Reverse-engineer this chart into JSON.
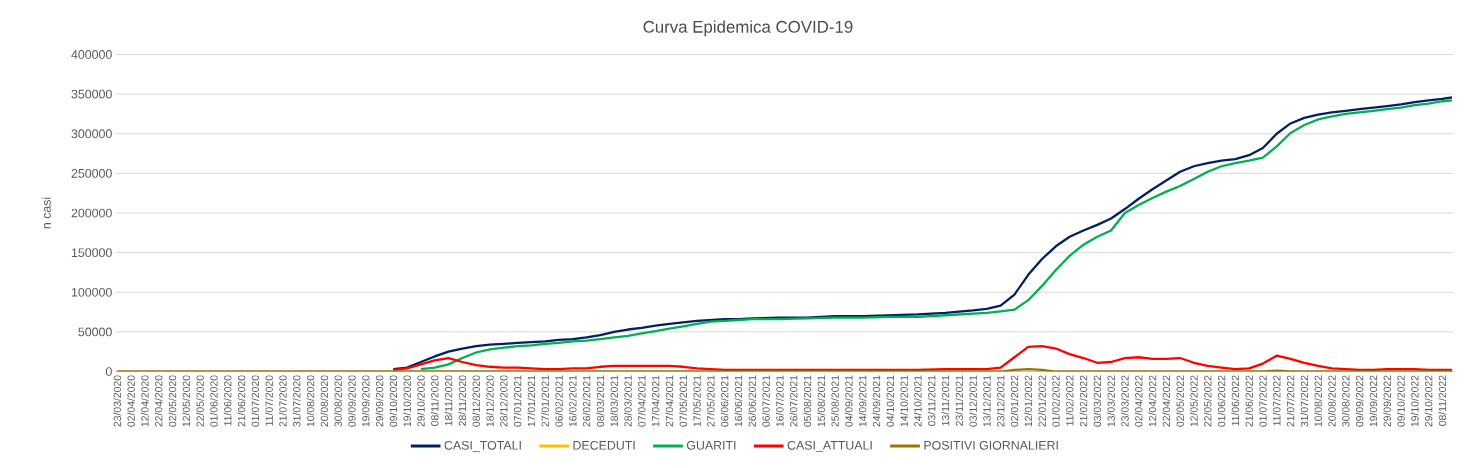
{
  "chart_data": {
    "type": "line",
    "title": "Curva Epidemica COVID-19",
    "ylabel": "n casi",
    "x": [
      "2020-03-23",
      "2020-05-12",
      "2020-07-01",
      "2020-08-20",
      "2020-09-19",
      "2020-10-09",
      "2020-10-19",
      "2020-10-29",
      "2020-11-08",
      "2020-11-18",
      "2020-11-28",
      "2020-12-08",
      "2020-12-18",
      "2020-12-28",
      "2021-01-07",
      "2021-01-17",
      "2021-01-27",
      "2021-02-06",
      "2021-02-16",
      "2021-02-26",
      "2021-03-08",
      "2021-03-18",
      "2021-03-28",
      "2021-04-07",
      "2021-04-17",
      "2021-04-27",
      "2021-05-07",
      "2021-05-17",
      "2021-05-27",
      "2021-06-06",
      "2021-06-16",
      "2021-06-26",
      "2021-07-16",
      "2021-08-05",
      "2021-08-25",
      "2021-09-14",
      "2021-10-04",
      "2021-10-24",
      "2021-11-13",
      "2021-12-03",
      "2021-12-13",
      "2021-12-23",
      "2022-01-02",
      "2022-01-12",
      "2022-01-22",
      "2022-02-01",
      "2022-02-11",
      "2022-02-21",
      "2022-03-03",
      "2022-03-13",
      "2022-03-23",
      "2022-04-02",
      "2022-04-12",
      "2022-04-22",
      "2022-05-02",
      "2022-05-12",
      "2022-05-22",
      "2022-06-01",
      "2022-06-11",
      "2022-06-21",
      "2022-07-01",
      "2022-07-11",
      "2022-07-21",
      "2022-07-31",
      "2022-08-10",
      "2022-08-20",
      "2022-08-30",
      "2022-09-09",
      "2022-09-19",
      "2022-09-29",
      "2022-10-09",
      "2022-10-19",
      "2022-10-29",
      "2022-11-08",
      "2022-11-15"
    ],
    "series": [
      {
        "name": "CASI_TOTALI",
        "color": "#002060",
        "values": [
          null,
          null,
          null,
          null,
          null,
          3000,
          5000,
          12000,
          19000,
          25000,
          29000,
          32000,
          34000,
          35000,
          36000,
          37000,
          38000,
          40000,
          41000,
          43000,
          46000,
          50000,
          53000,
          55000,
          58000,
          60000,
          62000,
          64000,
          65000,
          66000,
          66000,
          67000,
          68000,
          68000,
          70000,
          70000,
          71000,
          72000,
          74000,
          77000,
          79000,
          83000,
          97000,
          122000,
          142000,
          158000,
          170000,
          178000,
          185000,
          193000,
          205000,
          218000,
          230000,
          241000,
          252000,
          259000,
          263000,
          266000,
          268000,
          273000,
          282000,
          300000,
          313000,
          320000,
          324000,
          327000,
          329000,
          331000,
          333000,
          335000,
          337000,
          340000,
          342000,
          344000,
          346000
        ]
      },
      {
        "name": "DECEDUTI",
        "color": "#ffc000",
        "values": [
          null,
          null,
          null,
          null,
          null,
          null,
          null,
          null,
          null,
          null,
          null,
          null,
          null,
          null,
          null,
          null,
          null,
          null,
          null,
          null,
          null,
          null,
          null,
          null,
          null,
          null,
          null,
          null,
          null,
          null,
          null,
          null,
          null,
          null,
          null,
          null,
          null,
          null,
          null,
          null,
          null,
          null,
          null,
          null,
          null,
          null,
          null,
          null,
          null,
          null,
          null,
          null,
          null,
          null,
          null,
          null,
          null,
          null,
          null,
          null,
          null,
          null,
          null,
          null,
          null,
          null,
          null,
          null,
          null,
          null,
          null,
          null,
          null,
          null,
          null
        ]
      },
      {
        "name": "GUARITI",
        "color": "#00b050",
        "values": [
          null,
          null,
          null,
          null,
          null,
          null,
          null,
          3000,
          5000,
          9000,
          17000,
          24000,
          28000,
          30000,
          32000,
          33000,
          35000,
          36000,
          38000,
          39000,
          41000,
          43000,
          45000,
          48000,
          51000,
          54000,
          57000,
          60000,
          63000,
          64000,
          65000,
          66000,
          66000,
          67000,
          68000,
          68000,
          69000,
          69000,
          71000,
          73000,
          74000,
          76000,
          78000,
          90000,
          108000,
          128000,
          146000,
          160000,
          170000,
          178000,
          200000,
          210000,
          219000,
          227000,
          234000,
          243000,
          252000,
          259000,
          263000,
          266000,
          270000,
          284000,
          301000,
          311000,
          318000,
          322000,
          325000,
          327000,
          329000,
          331000,
          333000,
          336000,
          338000,
          341000,
          342000
        ]
      },
      {
        "name": "CASI_ATTUALI",
        "color": "#ff0000",
        "values": [
          null,
          null,
          null,
          null,
          null,
          2000,
          4000,
          9000,
          14000,
          17000,
          12000,
          8000,
          6000,
          5000,
          5000,
          4000,
          3000,
          3000,
          4000,
          4000,
          6000,
          7000,
          7000,
          7000,
          7000,
          7000,
          6000,
          4000,
          3000,
          2000,
          2000,
          2000,
          2000,
          2000,
          2000,
          2000,
          2000,
          2000,
          3000,
          3000,
          3000,
          5000,
          18000,
          31000,
          32000,
          29000,
          22000,
          17000,
          11000,
          12000,
          17000,
          18000,
          16000,
          16000,
          17000,
          11000,
          7000,
          5000,
          3000,
          4000,
          10000,
          20000,
          16000,
          11000,
          7000,
          4000,
          3000,
          2000,
          2000,
          3000,
          3000,
          3000,
          2000,
          2000,
          2000
        ]
      },
      {
        "name": "POSITIVI GIORNALIERI",
        "color": "#997300",
        "values": [
          0,
          0,
          0,
          0,
          0,
          0,
          0,
          0,
          0,
          0,
          0,
          0,
          0,
          0,
          0,
          0,
          0,
          0,
          0,
          0,
          0,
          0,
          0,
          0,
          0,
          0,
          0,
          0,
          0,
          0,
          0,
          0,
          0,
          0,
          0,
          0,
          0,
          0,
          0,
          0,
          0,
          0,
          2000,
          3000,
          2000,
          0,
          0,
          0,
          0,
          0,
          0,
          0,
          0,
          0,
          0,
          0,
          0,
          0,
          0,
          0,
          0,
          1000,
          0,
          0,
          0,
          0,
          0,
          0,
          0,
          0,
          0,
          0,
          0,
          0,
          0
        ]
      }
    ],
    "xlim": [
      "2020-03-22",
      "2022-11-16"
    ],
    "xticks": [
      {
        "value": "2020-03-23",
        "label": "23/03/2020"
      },
      {
        "value": "2020-04-02",
        "label": "02/04/2020"
      },
      {
        "value": "2020-04-12",
        "label": "12/04/2020"
      },
      {
        "value": "2020-04-22",
        "label": "22/04/2020"
      },
      {
        "value": "2020-05-02",
        "label": "02/05/2020"
      },
      {
        "value": "2020-05-12",
        "label": "12/05/2020"
      },
      {
        "value": "2020-05-22",
        "label": "22/05/2020"
      },
      {
        "value": "2020-06-01",
        "label": "01/06/2020"
      },
      {
        "value": "2020-06-11",
        "label": "11/06/2020"
      },
      {
        "value": "2020-06-21",
        "label": "21/06/2020"
      },
      {
        "value": "2020-07-01",
        "label": "01/07/2020"
      },
      {
        "value": "2020-07-11",
        "label": "11/07/2020"
      },
      {
        "value": "2020-07-21",
        "label": "21/07/2020"
      },
      {
        "value": "2020-07-31",
        "label": "31/07/2020"
      },
      {
        "value": "2020-08-10",
        "label": "10/08/2020"
      },
      {
        "value": "2020-08-20",
        "label": "20/08/2020"
      },
      {
        "value": "2020-08-30",
        "label": "30/08/2020"
      },
      {
        "value": "2020-09-09",
        "label": "09/09/2020"
      },
      {
        "value": "2020-09-19",
        "label": "19/09/2020"
      },
      {
        "value": "2020-09-29",
        "label": "29/09/2020"
      },
      {
        "value": "2020-10-09",
        "label": "09/10/2020"
      },
      {
        "value": "2020-10-19",
        "label": "19/10/2020"
      },
      {
        "value": "2020-10-29",
        "label": "29/10/2020"
      },
      {
        "value": "2020-11-08",
        "label": "08/11/2020"
      },
      {
        "value": "2020-11-18",
        "label": "18/11/2020"
      },
      {
        "value": "2020-11-28",
        "label": "28/11/2020"
      },
      {
        "value": "2020-12-08",
        "label": "08/12/2020"
      },
      {
        "value": "2020-12-18",
        "label": "18/12/2020"
      },
      {
        "value": "2020-12-28",
        "label": "28/12/2020"
      },
      {
        "value": "2021-01-07",
        "label": "07/01/2021"
      },
      {
        "value": "2021-01-17",
        "label": "17/01/2021"
      },
      {
        "value": "2021-01-27",
        "label": "27/01/2021"
      },
      {
        "value": "2021-02-06",
        "label": "06/02/2021"
      },
      {
        "value": "2021-02-16",
        "label": "16/02/2021"
      },
      {
        "value": "2021-02-26",
        "label": "26/02/2021"
      },
      {
        "value": "2021-03-08",
        "label": "08/03/2021"
      },
      {
        "value": "2021-03-18",
        "label": "18/03/2021"
      },
      {
        "value": "2021-03-28",
        "label": "28/03/2021"
      },
      {
        "value": "2021-04-07",
        "label": "07/04/2021"
      },
      {
        "value": "2021-04-17",
        "label": "17/04/2021"
      },
      {
        "value": "2021-04-27",
        "label": "27/04/2021"
      },
      {
        "value": "2021-05-07",
        "label": "07/05/2021"
      },
      {
        "value": "2021-05-17",
        "label": "17/05/2021"
      },
      {
        "value": "2021-05-27",
        "label": "27/05/2021"
      },
      {
        "value": "2021-06-06",
        "label": "06/06/2021"
      },
      {
        "value": "2021-06-16",
        "label": "16/06/2021"
      },
      {
        "value": "2021-06-26",
        "label": "26/06/2021"
      },
      {
        "value": "2021-07-06",
        "label": "06/07/2021"
      },
      {
        "value": "2021-07-16",
        "label": "16/07/2021"
      },
      {
        "value": "2021-07-26",
        "label": "26/07/2021"
      },
      {
        "value": "2021-08-05",
        "label": "05/08/2021"
      },
      {
        "value": "2021-08-15",
        "label": "15/08/2021"
      },
      {
        "value": "2021-08-25",
        "label": "25/08/2021"
      },
      {
        "value": "2021-09-04",
        "label": "04/09/2021"
      },
      {
        "value": "2021-09-14",
        "label": "14/09/2021"
      },
      {
        "value": "2021-09-24",
        "label": "24/09/2021"
      },
      {
        "value": "2021-10-04",
        "label": "04/10/2021"
      },
      {
        "value": "2021-10-14",
        "label": "14/10/2021"
      },
      {
        "value": "2021-10-24",
        "label": "24/10/2021"
      },
      {
        "value": "2021-11-03",
        "label": "03/11/2021"
      },
      {
        "value": "2021-11-13",
        "label": "13/11/2021"
      },
      {
        "value": "2021-11-23",
        "label": "23/11/2021"
      },
      {
        "value": "2021-12-03",
        "label": "03/12/2021"
      },
      {
        "value": "2021-12-13",
        "label": "13/12/2021"
      },
      {
        "value": "2021-12-23",
        "label": "23/12/2021"
      },
      {
        "value": "2022-01-02",
        "label": "02/01/2022"
      },
      {
        "value": "2022-01-12",
        "label": "12/01/2022"
      },
      {
        "value": "2022-01-22",
        "label": "22/01/2022"
      },
      {
        "value": "2022-02-01",
        "label": "01/02/2022"
      },
      {
        "value": "2022-02-11",
        "label": "11/02/2022"
      },
      {
        "value": "2022-02-21",
        "label": "21/02/2022"
      },
      {
        "value": "2022-03-03",
        "label": "03/03/2022"
      },
      {
        "value": "2022-03-13",
        "label": "13/03/2022"
      },
      {
        "value": "2022-03-23",
        "label": "23/03/2022"
      },
      {
        "value": "2022-04-02",
        "label": "02/04/2022"
      },
      {
        "value": "2022-04-12",
        "label": "12/04/2022"
      },
      {
        "value": "2022-04-22",
        "label": "22/04/2022"
      },
      {
        "value": "2022-05-02",
        "label": "02/05/2022"
      },
      {
        "value": "2022-05-12",
        "label": "12/05/2022"
      },
      {
        "value": "2022-05-22",
        "label": "22/05/2022"
      },
      {
        "value": "2022-06-01",
        "label": "01/06/2022"
      },
      {
        "value": "2022-06-11",
        "label": "11/06/2022"
      },
      {
        "value": "2022-06-21",
        "label": "21/06/2022"
      },
      {
        "value": "2022-07-01",
        "label": "01/07/2022"
      },
      {
        "value": "2022-07-11",
        "label": "11/07/2022"
      },
      {
        "value": "2022-07-21",
        "label": "21/07/2022"
      },
      {
        "value": "2022-07-31",
        "label": "31/07/2022"
      },
      {
        "value": "2022-08-10",
        "label": "10/08/2022"
      },
      {
        "value": "2022-08-20",
        "label": "20/08/2022"
      },
      {
        "value": "2022-08-30",
        "label": "30/08/2022"
      },
      {
        "value": "2022-09-09",
        "label": "09/09/2022"
      },
      {
        "value": "2022-09-19",
        "label": "19/09/2022"
      },
      {
        "value": "2022-09-29",
        "label": "29/09/2022"
      },
      {
        "value": "2022-10-09",
        "label": "09/10/2022"
      },
      {
        "value": "2022-10-19",
        "label": "19/10/2022"
      },
      {
        "value": "2022-10-29",
        "label": "29/10/2022"
      },
      {
        "value": "2022-11-08",
        "label": "08/11/2022"
      }
    ],
    "ylim": [
      0,
      400000
    ],
    "yticks": [
      0,
      50000,
      100000,
      150000,
      200000,
      250000,
      300000,
      350000,
      400000
    ],
    "grid": "y",
    "legend": "bottom"
  }
}
